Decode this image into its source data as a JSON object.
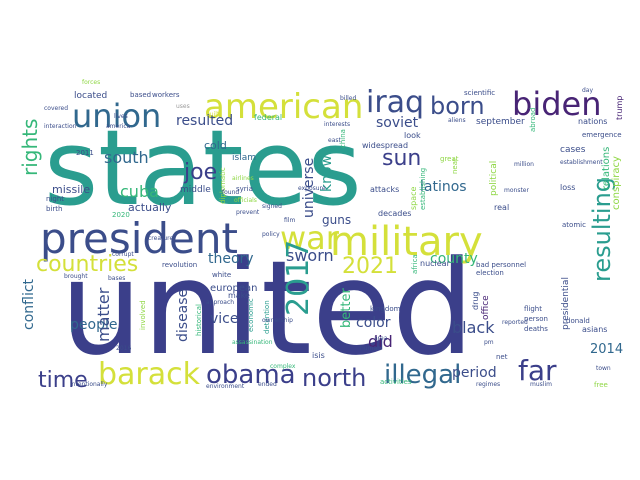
{
  "colors": {
    "teal": "#2a9d8f",
    "indigo": "#3b3f8a",
    "purple": "#482475",
    "blue": "#31688e",
    "green": "#35b779",
    "lime": "#8fd744",
    "yellow": "#d4e03a",
    "gray": "#999999"
  },
  "words": [
    {
      "text": "states"
    },
    {
      "text": "united"
    },
    {
      "text": "president"
    },
    {
      "text": "military"
    },
    {
      "text": "american"
    },
    {
      "text": "iraq"
    },
    {
      "text": "biden"
    },
    {
      "text": "born"
    },
    {
      "text": "union"
    },
    {
      "text": "war"
    },
    {
      "text": "barack"
    },
    {
      "text": "obama"
    },
    {
      "text": "2017"
    },
    {
      "text": "north"
    },
    {
      "text": "illegal"
    },
    {
      "text": "far"
    },
    {
      "text": "joe"
    },
    {
      "text": "countries"
    },
    {
      "text": "time"
    },
    {
      "text": "rights"
    },
    {
      "text": "resulting"
    },
    {
      "text": "2021"
    },
    {
      "text": "sun"
    },
    {
      "text": "cuba"
    },
    {
      "text": "south"
    },
    {
      "text": "soviet"
    },
    {
      "text": "resulted"
    },
    {
      "text": "universe"
    },
    {
      "text": "known"
    },
    {
      "text": "latinos"
    },
    {
      "text": "county"
    },
    {
      "text": "sworn"
    },
    {
      "text": "theory"
    },
    {
      "text": "conflict"
    },
    {
      "text": "people"
    },
    {
      "text": "matter"
    },
    {
      "text": "disease"
    },
    {
      "text": "vice"
    },
    {
      "text": "better"
    },
    {
      "text": "color"
    },
    {
      "text": "did"
    },
    {
      "text": "black"
    },
    {
      "text": "period"
    },
    {
      "text": "2014"
    },
    {
      "text": "guns"
    },
    {
      "text": "actually"
    },
    {
      "text": "missile"
    },
    {
      "text": "cold"
    },
    {
      "text": "islam"
    },
    {
      "text": "middle"
    },
    {
      "text": "european"
    },
    {
      "text": "september"
    },
    {
      "text": "cases"
    },
    {
      "text": "nations"
    },
    {
      "text": "relations"
    },
    {
      "text": "conspiracy"
    },
    {
      "text": "political"
    },
    {
      "text": "located"
    },
    {
      "text": "based"
    },
    {
      "text": "workers"
    },
    {
      "text": "scientific"
    },
    {
      "text": "look"
    },
    {
      "text": "attacks"
    },
    {
      "text": "real"
    },
    {
      "text": "widespread"
    },
    {
      "text": "decades"
    },
    {
      "text": "revolution"
    },
    {
      "text": "nuclear"
    },
    {
      "text": "drug"
    },
    {
      "text": "office"
    },
    {
      "text": "bad personnel"
    },
    {
      "text": "kingdom"
    },
    {
      "text": "presidential"
    },
    {
      "text": "donald"
    },
    {
      "text": "asians"
    },
    {
      "text": "deaths"
    },
    {
      "text": "flight"
    },
    {
      "text": "person"
    },
    {
      "text": "isis"
    },
    {
      "text": "net"
    },
    {
      "text": "activities"
    },
    {
      "text": "make"
    },
    {
      "text": "white"
    },
    {
      "text": "federal"
    },
    {
      "text": "2011"
    },
    {
      "text": "syria"
    },
    {
      "text": "2020"
    },
    {
      "text": "night"
    },
    {
      "text": "birth"
    },
    {
      "text": "america"
    },
    {
      "text": "great"
    },
    {
      "text": "loss"
    },
    {
      "text": "atomic"
    },
    {
      "text": "election"
    },
    {
      "text": "trump"
    },
    {
      "text": "uses"
    },
    {
      "text": "aliens"
    },
    {
      "text": "airlines"
    },
    {
      "text": "officials"
    },
    {
      "text": "diplomatic"
    },
    {
      "text": "east"
    },
    {
      "text": "area"
    },
    {
      "text": "human"
    },
    {
      "text": "free"
    },
    {
      "text": "town"
    },
    {
      "text": "muslim"
    },
    {
      "text": "regimes"
    },
    {
      "text": "2016"
    },
    {
      "text": "historical"
    },
    {
      "text": "economic"
    },
    {
      "text": "assassination"
    },
    {
      "text": "ownership"
    },
    {
      "text": "china"
    },
    {
      "text": "interests"
    },
    {
      "text": "billed"
    },
    {
      "text": "million"
    },
    {
      "text": "establishment"
    },
    {
      "text": "monster"
    },
    {
      "text": "space"
    },
    {
      "text": "establishing"
    },
    {
      "text": "near"
    },
    {
      "text": "emergence"
    },
    {
      "text": "day"
    },
    {
      "text": "pm"
    },
    {
      "text": "reported"
    },
    {
      "text": "built"
    },
    {
      "text": "covered"
    },
    {
      "text": "interaction"
    },
    {
      "text": "lives"
    },
    {
      "text": "forces"
    },
    {
      "text": "found"
    },
    {
      "text": "film"
    },
    {
      "text": "creature"
    },
    {
      "text": "brought"
    },
    {
      "text": "corrupt"
    },
    {
      "text": "approach"
    },
    {
      "text": "bases"
    },
    {
      "text": "prevent"
    },
    {
      "text": "signed"
    },
    {
      "text": "policy"
    },
    {
      "text": "africa"
    },
    {
      "text": "abroad"
    },
    {
      "text": "involved"
    },
    {
      "text": "intentionally"
    },
    {
      "text": "detention"
    },
    {
      "text": "environment"
    },
    {
      "text": "ended"
    },
    {
      "text": "complex"
    },
    {
      "text": "exposure"
    },
    {
      "text": "secret"
    },
    {
      "text": "cannabis"
    }
  ]
}
